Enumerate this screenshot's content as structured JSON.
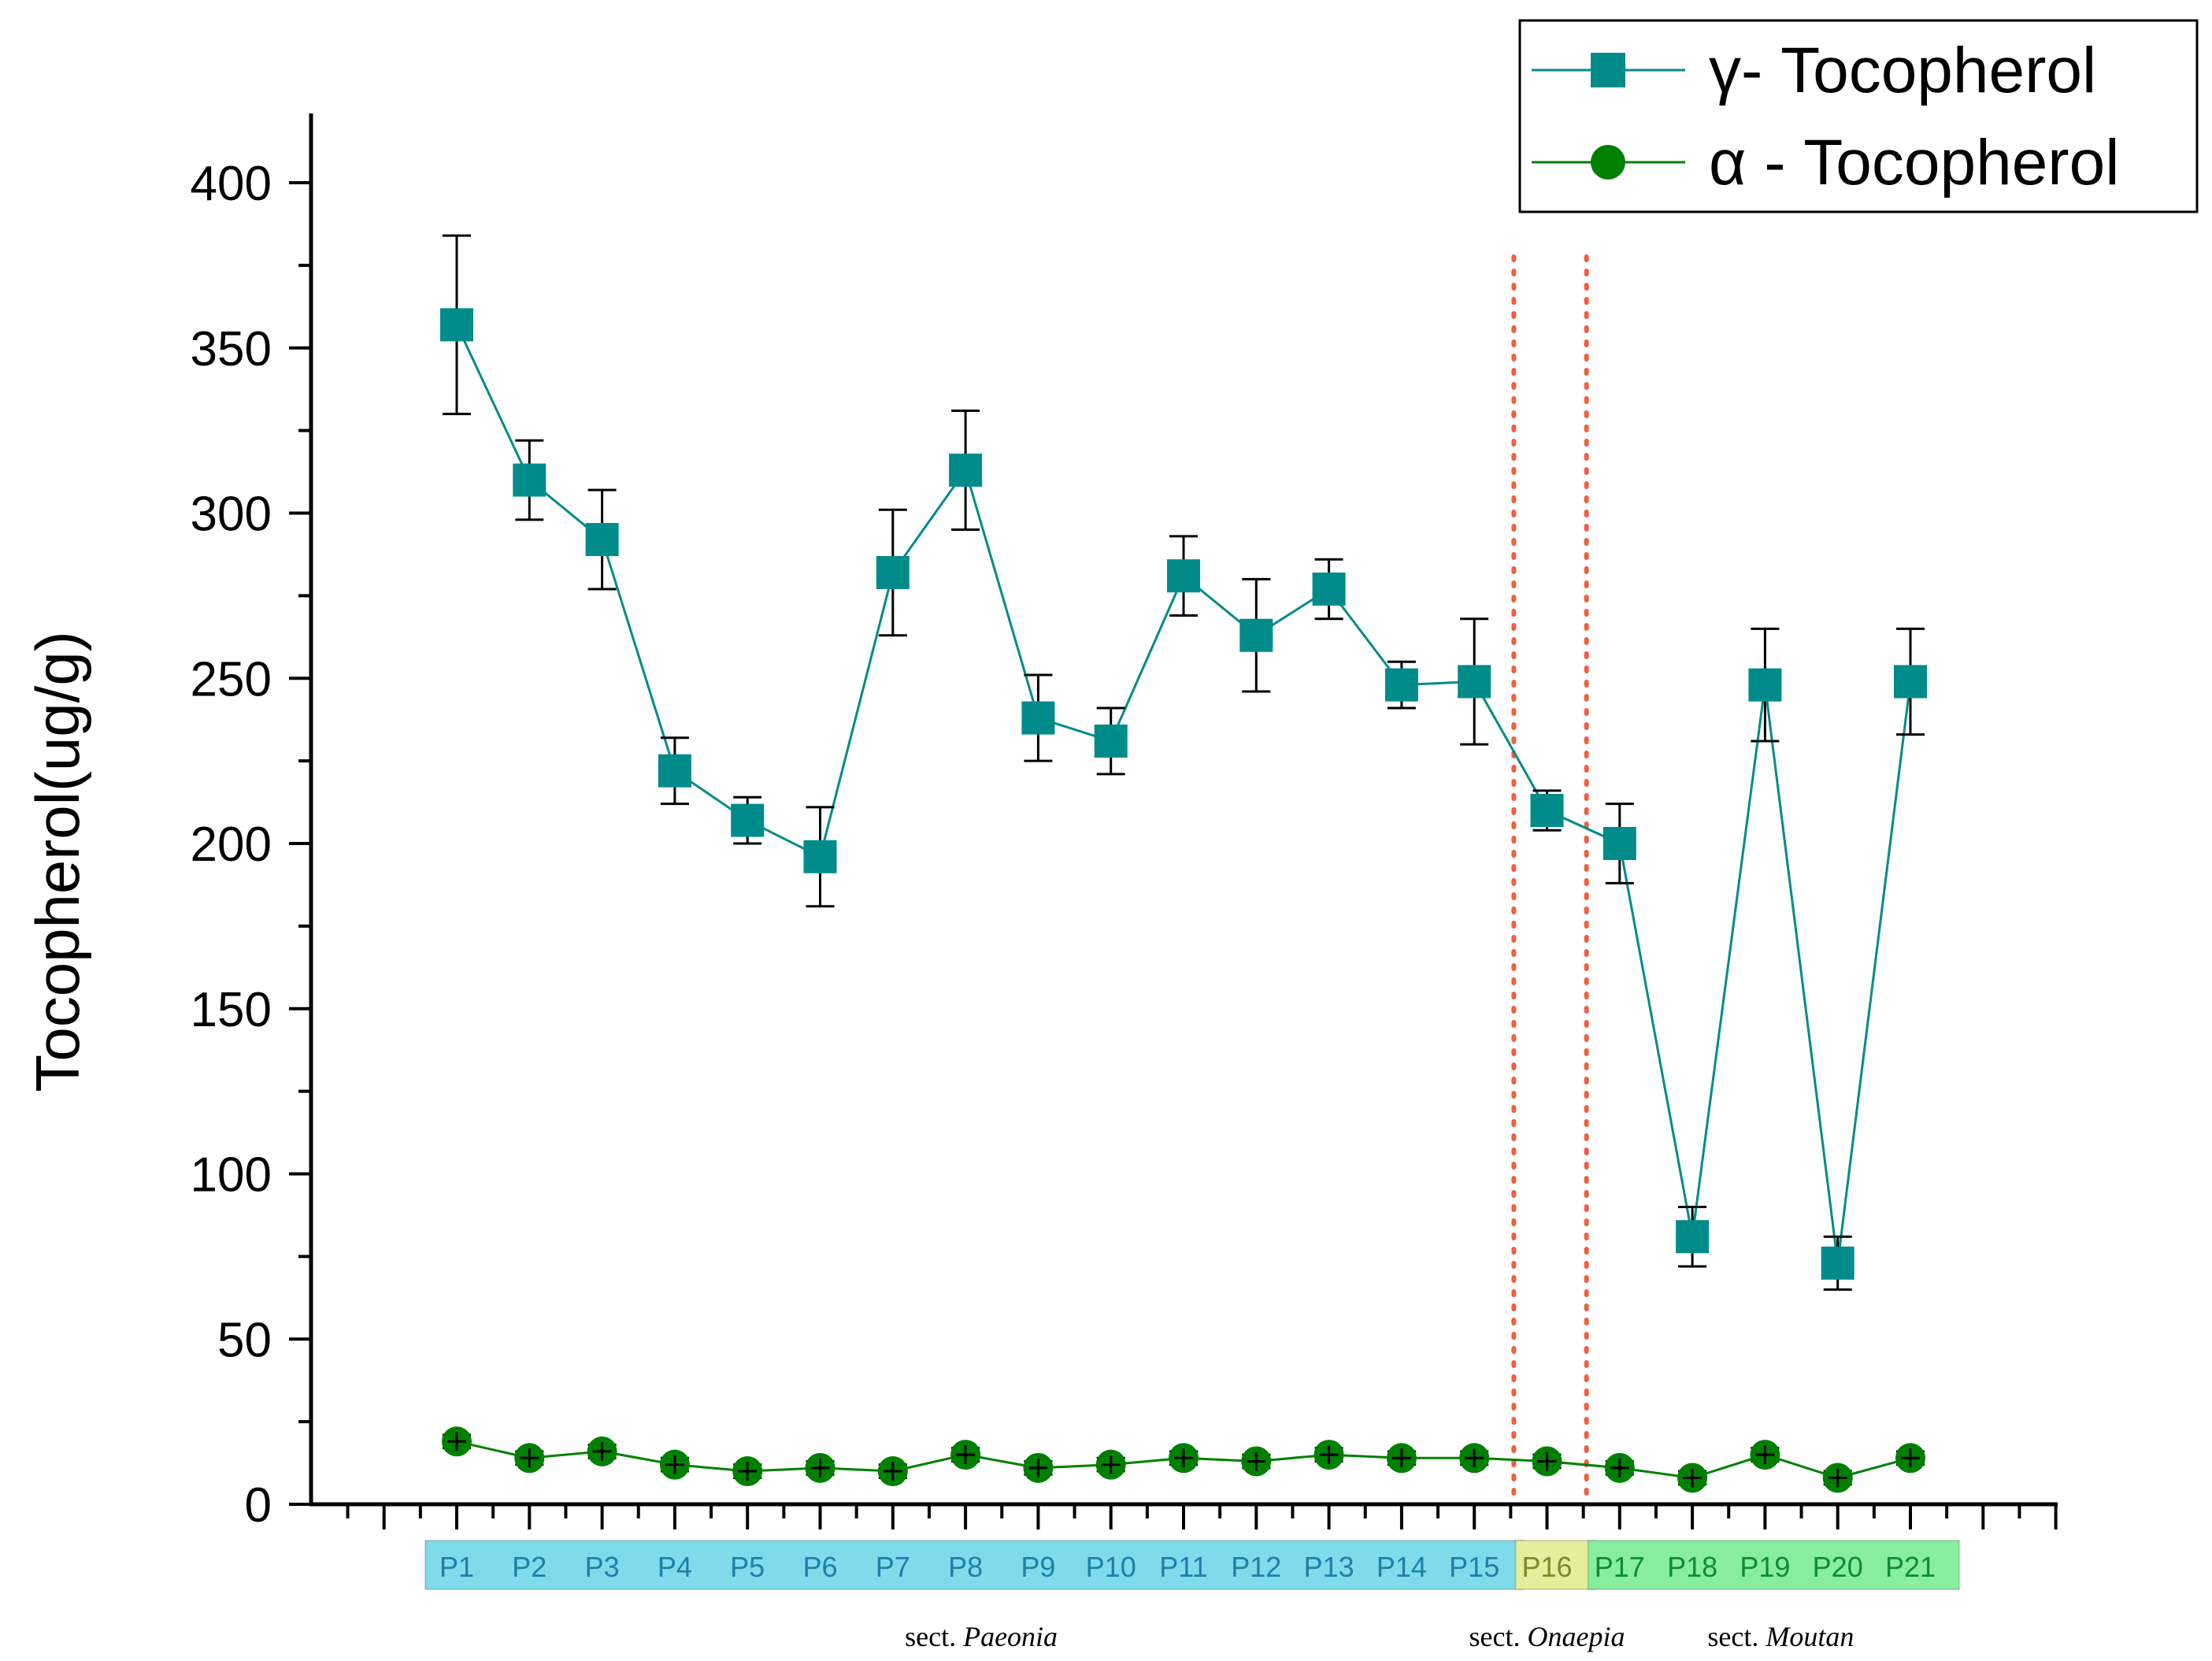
{
  "chart_data": {
    "type": "line",
    "ylabel": "Tocopherol(ug/g)",
    "xlabel": "",
    "ylim": [
      0,
      420
    ],
    "yticks": [
      0,
      50,
      100,
      150,
      200,
      250,
      300,
      350,
      400
    ],
    "categories": [
      "P1",
      "P2",
      "P3",
      "P4",
      "P5",
      "P6",
      "P7",
      "P8",
      "P9",
      "P10",
      "P11",
      "P12",
      "P13",
      "P14",
      "P15",
      "P16",
      "P17",
      "P18",
      "P19",
      "P20",
      "P21"
    ],
    "series": [
      {
        "name": "γ- Tocopherol",
        "marker": "square",
        "color": "#008B8B",
        "values": [
          357,
          310,
          292,
          222,
          207,
          196,
          282,
          313,
          238,
          231,
          281,
          263,
          277,
          248,
          249,
          210,
          200,
          81,
          248,
          73,
          249
        ],
        "error": [
          27,
          12,
          15,
          10,
          7,
          15,
          19,
          18,
          13,
          10,
          12,
          17,
          9,
          7,
          19,
          6,
          12,
          9,
          17,
          8,
          16
        ]
      },
      {
        "name": "α - Tocopherol",
        "marker": "circle",
        "color": "#008000",
        "values": [
          19,
          14,
          16,
          12,
          10,
          11,
          10,
          15,
          11,
          12,
          14,
          13,
          15,
          14,
          14,
          13,
          11,
          8,
          15,
          8,
          14
        ],
        "error": [
          2,
          2,
          2,
          2,
          2,
          2,
          2,
          2,
          2,
          2,
          2,
          2,
          2,
          2,
          2,
          2,
          2,
          2,
          2,
          2,
          2
        ]
      }
    ],
    "sections": [
      {
        "label": "sect.",
        "italic": "Paeonia",
        "from": 0,
        "to": 14,
        "color": "#7FDBEA",
        "text_color": "#1E7FA8"
      },
      {
        "label": "sect.",
        "italic": "Onaepia",
        "from": 15,
        "to": 15,
        "color": "#E4EE9B",
        "text_color": "#7B8A2A"
      },
      {
        "label": "sect.",
        "italic": "Moutan",
        "from": 16,
        "to": 20,
        "color": "#86EE9C",
        "text_color": "#0E8A3C"
      }
    ],
    "dividers": [
      14.5,
      15.5
    ],
    "divider_color": "#F06040",
    "legend_position": "top-right"
  }
}
